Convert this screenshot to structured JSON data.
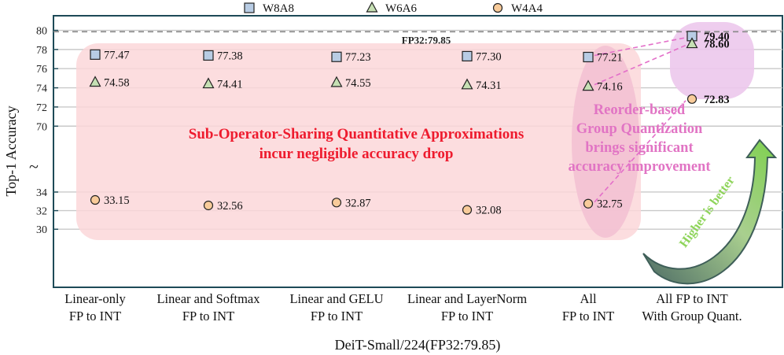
{
  "chart_data": {
    "type": "scatter",
    "xlabel": "DeiT-Small/224(FP32:79.85)",
    "ylabel": "Top-1 Accuracy",
    "categories": [
      [
        "Linear-only",
        "FP to INT"
      ],
      [
        "Linear and Softmax",
        "FP to INT"
      ],
      [
        "Linear and GELU",
        "FP to INT"
      ],
      [
        "Linear and LayerNorm",
        "FP to INT"
      ],
      [
        "All",
        "FP to INT"
      ],
      [
        "All FP to INT",
        "With Group Quant."
      ]
    ],
    "series": [
      {
        "name": "W8A8",
        "marker": "square",
        "color": "#b8cce4",
        "values": [
          77.47,
          77.38,
          77.23,
          77.3,
          77.21,
          79.4
        ]
      },
      {
        "name": "W6A6",
        "marker": "triangle",
        "color": "#c6e0b4",
        "values": [
          74.58,
          74.41,
          74.55,
          74.31,
          74.16,
          78.6
        ]
      },
      {
        "name": "W4A4",
        "marker": "circle",
        "color": "#f8cb9a",
        "values": [
          33.15,
          32.56,
          32.87,
          32.08,
          32.75,
          72.83
        ]
      }
    ],
    "value_labels": [
      [
        "77.47",
        "77.38",
        "77.23",
        "77.30",
        "77.21",
        "79.40"
      ],
      [
        "74.58",
        "74.41",
        "74.55",
        "74.31",
        "74.16",
        "78.60"
      ],
      [
        "33.15",
        "32.56",
        "32.87",
        "32.08",
        "32.75",
        "72.83"
      ]
    ],
    "broken_axis": {
      "upper": {
        "min": 66.9,
        "max": 80.7,
        "ticks": [
          70,
          72,
          74,
          76,
          78,
          80
        ]
      },
      "lower": {
        "min": 26.8,
        "max": 36.2,
        "ticks": [
          30,
          32,
          34
        ]
      },
      "break_symbol": "~"
    },
    "reference_line": {
      "label": "FP32:79.85",
      "value": 79.85
    },
    "annotations": {
      "sharing": [
        "Sub-Operator-Sharing Quantitative Approximations",
        "incur negligible accuracy drop"
      ],
      "reorder": [
        "Reorder-based",
        "Group Quantization",
        "brings significant",
        "accuracy improvement"
      ],
      "higher": "Higher is better"
    },
    "legend_position": "top",
    "grid": true
  }
}
